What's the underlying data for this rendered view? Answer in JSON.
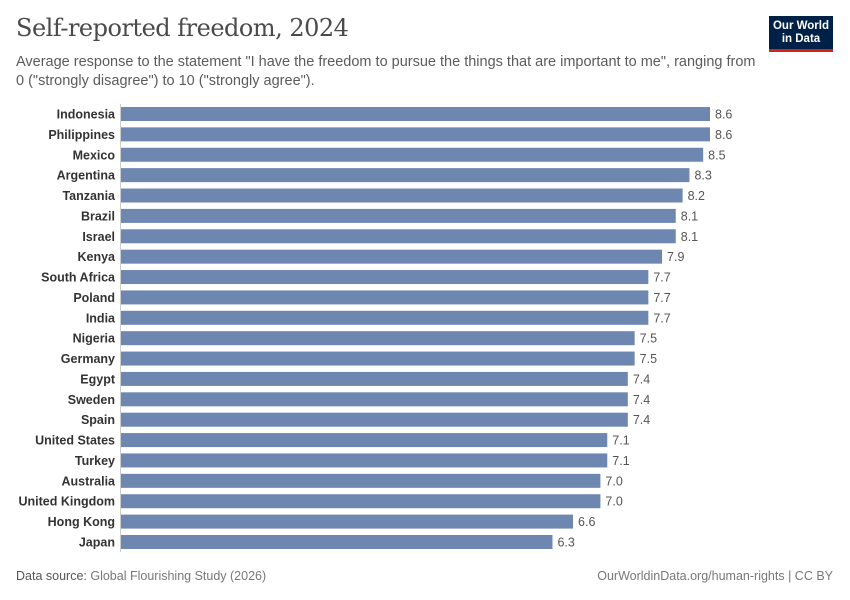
{
  "header": {
    "title": "Self-reported freedom, 2024",
    "subtitle": "Average response to the statement \"I have the freedom to pursue the things that are important to me\", ranging from 0 (\"strongly disagree\") to 10 (\"strongly agree\").",
    "logo_text": "Our World in Data"
  },
  "footer": {
    "source_label": "Data source:",
    "source": "Global Flourishing Study (2026)",
    "url": "OurWorldinData.org/human-rights | CC BY"
  },
  "chart_data": {
    "type": "bar",
    "orientation": "horizontal",
    "title": "Self-reported freedom, 2024",
    "categories": [
      "Indonesia",
      "Philippines",
      "Mexico",
      "Argentina",
      "Tanzania",
      "Brazil",
      "Israel",
      "Kenya",
      "South Africa",
      "Poland",
      "India",
      "Nigeria",
      "Germany",
      "Egypt",
      "Sweden",
      "Spain",
      "United States",
      "Turkey",
      "Australia",
      "United Kingdom",
      "Hong Kong",
      "Japan"
    ],
    "values": [
      8.6,
      8.6,
      8.5,
      8.3,
      8.2,
      8.1,
      8.1,
      7.9,
      7.7,
      7.7,
      7.7,
      7.5,
      7.5,
      7.4,
      7.4,
      7.4,
      7.1,
      7.1,
      7.0,
      7.0,
      6.6,
      6.3
    ],
    "value_labels": [
      "8.6",
      "8.6",
      "8.5",
      "8.3",
      "8.2",
      "8.1",
      "8.1",
      "7.9",
      "7.7",
      "7.7",
      "7.7",
      "7.5",
      "7.5",
      "7.4",
      "7.4",
      "7.4",
      "7.1",
      "7.1",
      "7.0",
      "7.0",
      "6.6",
      "6.3"
    ],
    "xlim": [
      0,
      8.6
    ],
    "grid": false,
    "bar_color": "#6d87b0"
  }
}
